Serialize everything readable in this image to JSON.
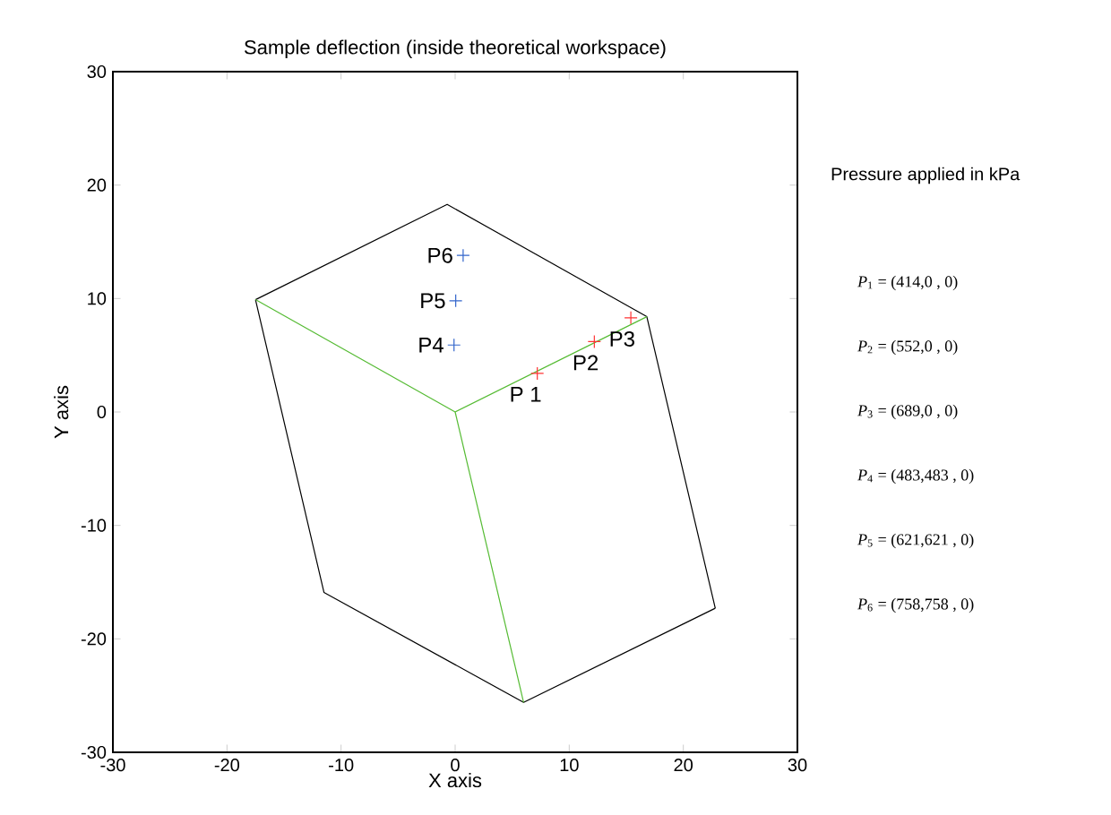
{
  "chart_data": {
    "type": "scatter",
    "title": "Sample deflection (inside theoretical workspace)",
    "xlabel": "X axis",
    "ylabel": "Y axis",
    "xlim": [
      -30,
      30
    ],
    "ylim": [
      -30,
      30
    ],
    "xticks": [
      -30,
      -20,
      -10,
      0,
      10,
      20,
      30
    ],
    "yticks": [
      -30,
      -20,
      -10,
      0,
      10,
      20,
      30
    ],
    "grid": false,
    "series": [
      {
        "type": "line",
        "color": "#000000",
        "x": [
          -17.5,
          -0.7,
          16.8,
          22.8
        ],
        "values": [
          9.9,
          18.3,
          8.4,
          -17.3
        ]
      },
      {
        "type": "line",
        "color": "#000000",
        "x": [
          -17.5,
          -11.5,
          6.0,
          22.8
        ],
        "values": [
          9.9,
          -15.9,
          -25.6,
          -17.3
        ]
      },
      {
        "type": "line",
        "color": "#55bb33",
        "x": [
          -17.5,
          0,
          16.8
        ],
        "values": [
          9.9,
          0,
          8.4
        ]
      },
      {
        "type": "line",
        "color": "#55bb33",
        "x": [
          0,
          6.0
        ],
        "values": [
          0,
          -25.6
        ]
      },
      {
        "marker": "cross",
        "color": "#ff3333",
        "x": [
          7.2,
          12.2,
          15.4
        ],
        "values": [
          3.4,
          6.2,
          8.3
        ]
      },
      {
        "marker": "cross",
        "color": "#3366cc",
        "x": [
          -0.1,
          0.05,
          0.7
        ],
        "values": [
          5.9,
          9.8,
          13.8
        ]
      }
    ],
    "annotations": [
      {
        "text": "P 1",
        "x": 7.2,
        "y": 3.4
      },
      {
        "text": "P2",
        "x": 12.2,
        "y": 6.2
      },
      {
        "text": "P3",
        "x": 15.4,
        "y": 8.3
      },
      {
        "text": "P4",
        "x": -0.1,
        "y": 5.9
      },
      {
        "text": "P5",
        "x": 0.05,
        "y": 9.8
      },
      {
        "text": "P6",
        "x": 0.7,
        "y": 13.8
      },
      "Pressure applied in kPa",
      "*P*$_{1}$ = (414,0 , 0)",
      "*P*$_{2}$ = (552,0 , 0)",
      "*P*$_{3}$ = (689,0 , 0)",
      "*P*$_{4}$ = (483,483 , 0)",
      "*P*$_{5}$ = (621,621 , 0)",
      "*P*$_{6}$ = (758,758 , 0)"
    ]
  }
}
